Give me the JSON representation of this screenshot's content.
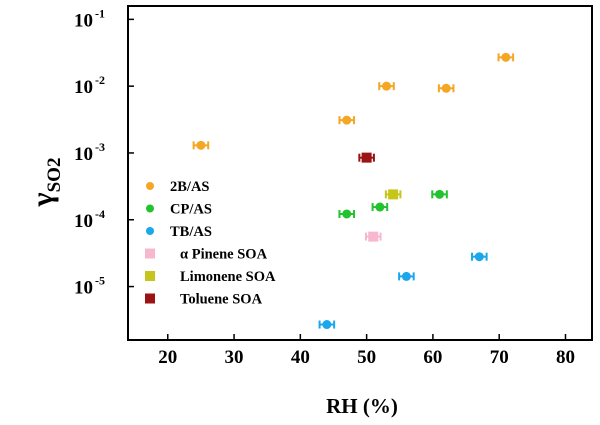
{
  "chart_data": {
    "type": "scatter",
    "xlabel": "RH (%)",
    "ylabel": "γ",
    "ylabel_subscript": "SO2",
    "xlim": [
      14,
      84
    ],
    "ylim_log10": [
      -5.8,
      -0.8
    ],
    "log_scale_y": true,
    "grid": false,
    "legend_position": "lower-left",
    "x_ticks": [
      20,
      30,
      40,
      50,
      60,
      70,
      80
    ],
    "y_ticks": [
      {
        "value": 1e-05,
        "base": "10",
        "exp": "-5"
      },
      {
        "value": 0.0001,
        "base": "10",
        "exp": "-4"
      },
      {
        "value": 0.001,
        "base": "10",
        "exp": "-3"
      },
      {
        "value": 0.01,
        "base": "10",
        "exp": "-2"
      },
      {
        "value": 0.1,
        "base": "10",
        "exp": "-1"
      }
    ],
    "series": [
      {
        "name": "2B/AS",
        "color": "#f5a623",
        "marker": "circle",
        "points": [
          {
            "x": 25,
            "y": 0.0013,
            "xerr": 1.1
          },
          {
            "x": 47,
            "y": 0.0031,
            "xerr": 1.1
          },
          {
            "x": 53,
            "y": 0.01,
            "xerr": 1.1
          },
          {
            "x": 62,
            "y": 0.0093,
            "xerr": 1.1
          },
          {
            "x": 71,
            "y": 0.027,
            "xerr": 1.1
          }
        ]
      },
      {
        "name": "CP/AS",
        "color": "#22c32e",
        "marker": "circle",
        "points": [
          {
            "x": 47,
            "y": 0.000122,
            "xerr": 1.1
          },
          {
            "x": 52,
            "y": 0.000155,
            "xerr": 1.1
          },
          {
            "x": 61,
            "y": 0.00024,
            "xerr": 1.1
          }
        ]
      },
      {
        "name": "TB/AS",
        "color": "#1aa7ec",
        "marker": "circle",
        "points": [
          {
            "x": 44,
            "y": 2.7e-06,
            "xerr": 1.1
          },
          {
            "x": 56,
            "y": 1.42e-05,
            "xerr": 1.1
          },
          {
            "x": 67,
            "y": 2.8e-05,
            "xerr": 1.1
          }
        ]
      },
      {
        "name": "α Pinene SOA",
        "color": "#f7b8cf",
        "marker": "bowtie",
        "points": [
          {
            "x": 51,
            "y": 5.6e-05,
            "xerr": 1.1
          }
        ]
      },
      {
        "name": "Limonene SOA",
        "color": "#c6c61a",
        "marker": "bowtie",
        "points": [
          {
            "x": 54,
            "y": 0.00024,
            "xerr": 1.1
          }
        ]
      },
      {
        "name": "Toluene SOA",
        "color": "#9b1414",
        "marker": "bowtie",
        "points": [
          {
            "x": 50,
            "y": 0.00085,
            "xerr": 1.1
          }
        ]
      }
    ]
  }
}
